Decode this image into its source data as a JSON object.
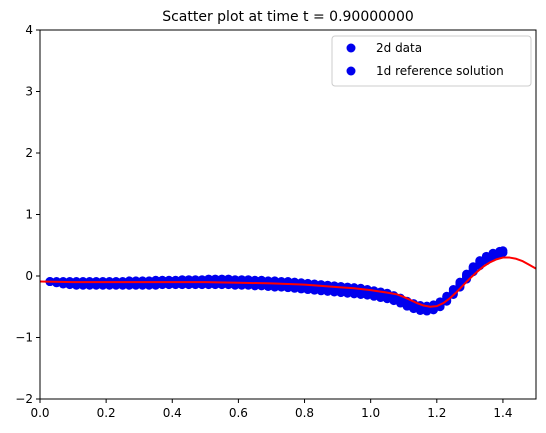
{
  "chart_data": {
    "type": "scatter",
    "title": "Scatter plot at time t =      0.90000000",
    "xlabel": "",
    "ylabel": "",
    "xlim": [
      0,
      1.5
    ],
    "ylim": [
      -2,
      4
    ],
    "x_ticks": [
      0.0,
      0.2,
      0.4,
      0.6,
      0.8,
      1.0,
      1.2,
      1.4
    ],
    "x_tick_labels": [
      "0.0",
      "0.2",
      "0.4",
      "0.6",
      "0.8",
      "1.0",
      "1.2",
      "1.4"
    ],
    "y_ticks": [
      -2,
      -1,
      0,
      1,
      2,
      3,
      4
    ],
    "y_tick_labels": [
      "−2",
      "−1",
      "0",
      "1",
      "2",
      "3",
      "4"
    ],
    "grid": false,
    "legend_position": "top-right",
    "legend": [
      {
        "label": "2d data",
        "color": "#0000ee",
        "marker": "circle"
      },
      {
        "label": "1d reference solution",
        "color": "#0000ee",
        "marker": "circle"
      }
    ],
    "series": [
      {
        "name": "2d data",
        "kind": "scatter",
        "color": "#0000ee",
        "x": [
          0.03,
          0.05,
          0.07,
          0.09,
          0.11,
          0.13,
          0.15,
          0.17,
          0.19,
          0.21,
          0.23,
          0.25,
          0.27,
          0.29,
          0.31,
          0.33,
          0.35,
          0.37,
          0.39,
          0.41,
          0.43,
          0.45,
          0.47,
          0.49,
          0.51,
          0.53,
          0.55,
          0.57,
          0.59,
          0.61,
          0.63,
          0.65,
          0.67,
          0.69,
          0.71,
          0.73,
          0.75,
          0.77,
          0.79,
          0.81,
          0.83,
          0.85,
          0.87,
          0.89,
          0.91,
          0.93,
          0.95,
          0.97,
          0.99,
          1.01,
          1.03,
          1.05,
          1.07,
          1.09,
          1.11,
          1.13,
          1.15,
          1.17,
          1.19,
          1.21,
          1.23,
          1.25,
          1.27,
          1.29,
          1.31,
          1.33,
          1.35,
          1.37,
          1.39,
          1.4
        ],
        "y_upper": [
          -0.09,
          -0.09,
          -0.09,
          -0.09,
          -0.09,
          -0.09,
          -0.09,
          -0.09,
          -0.09,
          -0.09,
          -0.09,
          -0.09,
          -0.08,
          -0.08,
          -0.08,
          -0.08,
          -0.07,
          -0.07,
          -0.07,
          -0.07,
          -0.06,
          -0.06,
          -0.06,
          -0.06,
          -0.05,
          -0.05,
          -0.05,
          -0.05,
          -0.06,
          -0.06,
          -0.06,
          -0.07,
          -0.07,
          -0.08,
          -0.08,
          -0.09,
          -0.09,
          -0.1,
          -0.11,
          -0.12,
          -0.13,
          -0.14,
          -0.15,
          -0.16,
          -0.17,
          -0.18,
          -0.19,
          -0.2,
          -0.22,
          -0.24,
          -0.26,
          -0.28,
          -0.32,
          -0.36,
          -0.41,
          -0.45,
          -0.48,
          -0.49,
          -0.47,
          -0.42,
          -0.33,
          -0.22,
          -0.1,
          0.03,
          0.15,
          0.25,
          0.32,
          0.37,
          0.4,
          0.41
        ],
        "y_lower": [
          -0.09,
          -0.11,
          -0.13,
          -0.14,
          -0.15,
          -0.15,
          -0.15,
          -0.15,
          -0.15,
          -0.15,
          -0.15,
          -0.15,
          -0.15,
          -0.15,
          -0.15,
          -0.15,
          -0.15,
          -0.14,
          -0.14,
          -0.14,
          -0.14,
          -0.14,
          -0.14,
          -0.14,
          -0.14,
          -0.14,
          -0.14,
          -0.14,
          -0.15,
          -0.15,
          -0.15,
          -0.16,
          -0.16,
          -0.17,
          -0.18,
          -0.18,
          -0.19,
          -0.2,
          -0.21,
          -0.22,
          -0.23,
          -0.24,
          -0.25,
          -0.26,
          -0.27,
          -0.28,
          -0.29,
          -0.3,
          -0.31,
          -0.33,
          -0.35,
          -0.37,
          -0.4,
          -0.44,
          -0.49,
          -0.53,
          -0.56,
          -0.57,
          -0.55,
          -0.5,
          -0.41,
          -0.3,
          -0.18,
          -0.05,
          0.07,
          0.17,
          0.25,
          0.31,
          0.35,
          0.38
        ]
      },
      {
        "name": "1d reference solution",
        "kind": "line",
        "color": "#ff0000",
        "x": [
          0.0,
          0.1,
          0.2,
          0.3,
          0.4,
          0.5,
          0.6,
          0.7,
          0.8,
          0.85,
          0.9,
          0.95,
          1.0,
          1.05,
          1.08,
          1.1,
          1.12,
          1.14,
          1.16,
          1.18,
          1.2,
          1.22,
          1.24,
          1.26,
          1.28,
          1.3,
          1.32,
          1.34,
          1.36,
          1.38,
          1.4,
          1.42,
          1.44,
          1.46,
          1.48,
          1.5
        ],
        "y": [
          -0.09,
          -0.1,
          -0.1,
          -0.1,
          -0.1,
          -0.1,
          -0.11,
          -0.12,
          -0.14,
          -0.16,
          -0.18,
          -0.2,
          -0.23,
          -0.27,
          -0.3,
          -0.34,
          -0.39,
          -0.44,
          -0.48,
          -0.5,
          -0.49,
          -0.44,
          -0.36,
          -0.26,
          -0.15,
          -0.04,
          0.06,
          0.15,
          0.22,
          0.27,
          0.3,
          0.3,
          0.28,
          0.24,
          0.18,
          0.12
        ]
      }
    ]
  }
}
